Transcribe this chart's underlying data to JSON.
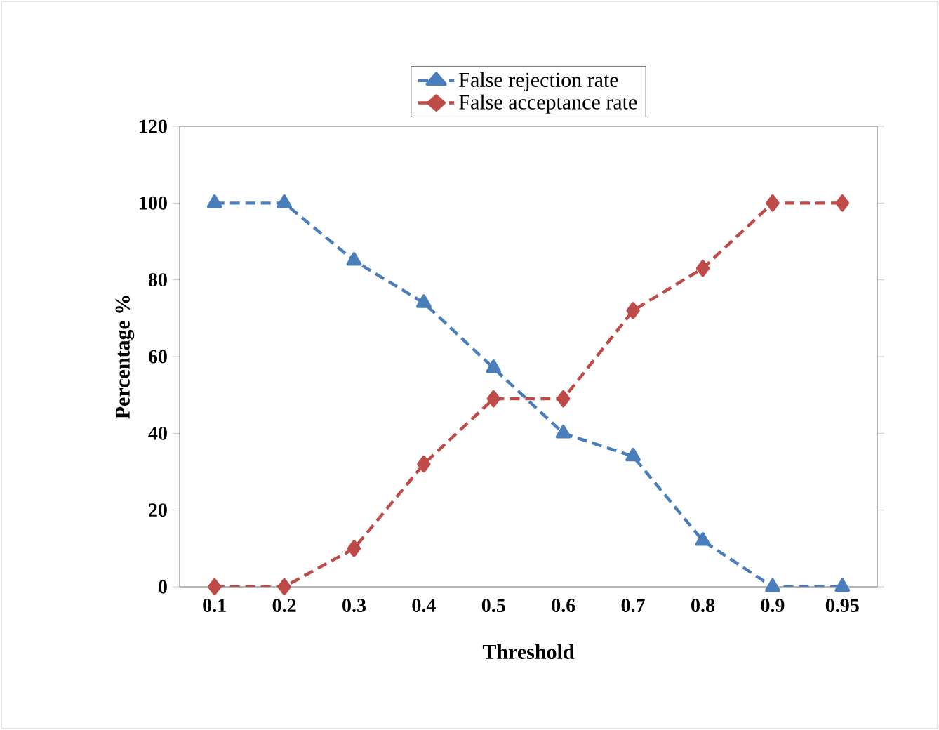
{
  "chart_data": {
    "type": "line",
    "xlabel": "Threshold",
    "ylabel": "Percentage  %",
    "categories": [
      "0.1",
      "0.2",
      "0.3",
      "0.4",
      "0.5",
      "0.6",
      "0.7",
      "0.8",
      "0.9",
      "0.95"
    ],
    "series": [
      {
        "name": "False rejection rate",
        "color": "#4a7ebb",
        "marker": "triangle",
        "values": [
          100,
          100,
          85,
          74,
          57,
          40,
          34,
          12,
          0,
          0
        ]
      },
      {
        "name": "False acceptance rate",
        "color": "#be4b48",
        "marker": "diamond",
        "values": [
          0,
          0,
          10,
          32,
          49,
          49,
          72,
          83,
          100,
          100
        ]
      }
    ],
    "ylim": [
      0,
      120
    ],
    "yticks": [
      0,
      20,
      40,
      60,
      80,
      100,
      120
    ],
    "legend": "top",
    "line_style": "dashed",
    "grid": false
  }
}
